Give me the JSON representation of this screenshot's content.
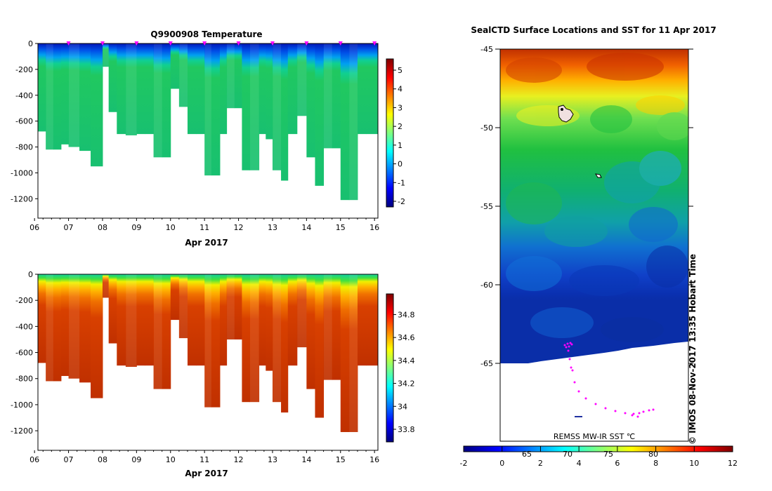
{
  "chart_data": [
    {
      "type": "heatmap",
      "title": "Q9900908  Temperature",
      "xlabel": "Apr 2017",
      "ylabel": "",
      "x_tick_labels": [
        "06",
        "07",
        "08",
        "09",
        "10",
        "11",
        "12",
        "13",
        "14",
        "15",
        "16"
      ],
      "xlim": [
        6.1,
        16.1
      ],
      "ylim": [
        -1350,
        0
      ],
      "y_ticks": [
        0,
        -200,
        -400,
        -600,
        -800,
        -1000,
        -1200
      ],
      "colorbar": {
        "ticks": [
          5,
          4,
          3,
          2,
          1,
          0,
          -1,
          -2
        ],
        "range": [
          -2.3,
          5.6
        ],
        "palette": "jet"
      },
      "profile_times": [
        6.1,
        6.33,
        6.55,
        6.78,
        7.0,
        7.32,
        7.65,
        8.0,
        8.18,
        8.42,
        8.68,
        9.0,
        9.25,
        9.5,
        9.75,
        10.0,
        10.25,
        10.5,
        10.75,
        11.0,
        11.2,
        11.45,
        11.65,
        11.88,
        12.1,
        12.33,
        12.6,
        12.8,
        13.0,
        13.25,
        13.45,
        13.72,
        14.0,
        14.25,
        14.5,
        14.75,
        15.0,
        15.25,
        15.5,
        15.75,
        16.1
      ],
      "profile_depths": [
        -680,
        -820,
        -820,
        -780,
        -800,
        -830,
        -950,
        -180,
        -530,
        -700,
        -710,
        -700,
        -700,
        -880,
        -880,
        -350,
        -490,
        -700,
        -700,
        -1020,
        -1020,
        -700,
        -500,
        -500,
        -980,
        -980,
        -700,
        -740,
        -980,
        -1060,
        -700,
        -560,
        -880,
        -1100,
        -810,
        -810,
        -1210,
        -1210,
        -700,
        -700
      ],
      "surface_markers": [
        7.0,
        8.0,
        9.0,
        10.0,
        11.0,
        12.0,
        13.0,
        14.0,
        15.0,
        16.0
      ]
    },
    {
      "type": "heatmap",
      "title": "",
      "xlabel": "Apr 2017",
      "ylabel": "",
      "x_tick_labels": [
        "06",
        "07",
        "08",
        "09",
        "10",
        "11",
        "12",
        "13",
        "14",
        "15",
        "16"
      ],
      "xlim": [
        6.1,
        16.1
      ],
      "ylim": [
        -1350,
        0
      ],
      "y_ticks": [
        0,
        -200,
        -400,
        -600,
        -800,
        -1000,
        -1200
      ],
      "colorbar": {
        "ticks": [
          "34.8",
          "34.6",
          "34.4",
          "34.2",
          "34",
          "33.8"
        ],
        "range": [
          33.69,
          34.98
        ],
        "palette": "jet"
      }
    },
    {
      "type": "heatmap",
      "title": "SealCTD Surface Locations and SST for 11 Apr 2017",
      "y_ticks": [
        -45,
        -50,
        -55,
        -60,
        -65
      ],
      "ylim": [
        -70,
        -45
      ],
      "colorbar": {
        "ticks": [
          "-2",
          "0",
          "2",
          "4",
          "6",
          "8",
          "10",
          "12"
        ],
        "range": [
          -2,
          12
        ],
        "palette": "jet"
      },
      "colorbar_inner_labels": [
        "65",
        "70",
        "75",
        "80"
      ],
      "source_label": "REMSS MW-IR SST ℃",
      "credit": "© IMOS 08-Nov-2017 13:35 Hobart Time"
    }
  ],
  "colors": {
    "jet_stops": [
      "#00007f",
      "#0000ff",
      "#007fff",
      "#00ffff",
      "#7fff7f",
      "#ffff00",
      "#ff7f00",
      "#ff0000",
      "#7f0000"
    ],
    "marker": "#ff00ff",
    "ice": "#ffffff"
  }
}
